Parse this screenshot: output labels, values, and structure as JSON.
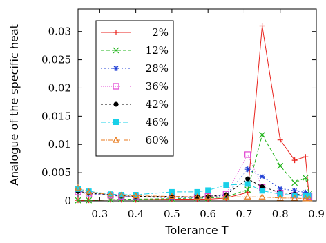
{
  "chart_data": {
    "type": "line",
    "xlabel": "Tolerance T",
    "ylabel": "Analogue of the specific heat",
    "xlim": [
      0.24,
      0.9
    ],
    "ylim": [
      0,
      0.034
    ],
    "xticks": [
      0.3,
      0.4,
      0.5,
      0.6,
      0.7,
      0.8,
      0.9
    ],
    "xtick_labels": [
      "0.3",
      "0.4",
      "0.5",
      "0.6",
      "0.7",
      "0.8",
      "0.9"
    ],
    "yticks": [
      0,
      0.005,
      0.01,
      0.015,
      0.02,
      0.025,
      0.03
    ],
    "ytick_labels": [
      "0",
      "0.005",
      "0.01",
      "0.015",
      "0.02",
      "0.025",
      "0.03"
    ],
    "legend_position": "top-left",
    "series": [
      {
        "name": "2%",
        "color": "#e8221c",
        "marker": "plus",
        "dash": "",
        "x": [
          0.24,
          0.27,
          0.33,
          0.36,
          0.4,
          0.5,
          0.57,
          0.6,
          0.65,
          0.71,
          0.75,
          0.8,
          0.84,
          0.87,
          0.88
        ],
        "y": [
          0.0001,
          0.0001,
          0.0002,
          0.0002,
          0.0002,
          0.0003,
          0.0003,
          0.0003,
          0.0005,
          0.0015,
          0.031,
          0.0108,
          0.0072,
          0.0078,
          0.0008
        ]
      },
      {
        "name": "12%",
        "color": "#22b41c",
        "marker": "x",
        "dash": "5,3",
        "x": [
          0.24,
          0.27,
          0.33,
          0.36,
          0.4,
          0.5,
          0.57,
          0.6,
          0.65,
          0.71,
          0.75,
          0.8,
          0.84,
          0.87,
          0.88
        ],
        "y": [
          0.0001,
          0.0001,
          0.0002,
          0.0003,
          0.0003,
          0.0004,
          0.0005,
          0.0005,
          0.0007,
          0.002,
          0.0117,
          0.0062,
          0.0032,
          0.0041,
          0.0012
        ]
      },
      {
        "name": "28%",
        "color": "#1c3cd4",
        "marker": "star",
        "dash": "2,3",
        "x": [
          0.24,
          0.27,
          0.33,
          0.36,
          0.4,
          0.5,
          0.57,
          0.6,
          0.65,
          0.71,
          0.75,
          0.8,
          0.84,
          0.87,
          0.88
        ],
        "y": [
          0.0018,
          0.0013,
          0.001,
          0.0008,
          0.0007,
          0.0006,
          0.0006,
          0.0006,
          0.001,
          0.0056,
          0.0043,
          0.0022,
          0.0018,
          0.0015,
          0.0012
        ]
      },
      {
        "name": "36%",
        "color": "#e040d0",
        "marker": "square-open",
        "dash": "1,2",
        "x": [
          0.24,
          0.27,
          0.33,
          0.36,
          0.4,
          0.5,
          0.57,
          0.6,
          0.65,
          0.71,
          0.75,
          0.8,
          0.84,
          0.87,
          0.88
        ],
        "y": [
          0.0016,
          0.0012,
          0.001,
          0.0008,
          0.0007,
          0.0007,
          0.0007,
          0.0008,
          0.0012,
          0.0082,
          0.0024,
          0.0014,
          0.001,
          0.0009,
          0.0008
        ]
      },
      {
        "name": "42%",
        "color": "#000000",
        "marker": "circle-filled",
        "dash": "3,3",
        "x": [
          0.24,
          0.27,
          0.33,
          0.36,
          0.4,
          0.5,
          0.57,
          0.6,
          0.65,
          0.71,
          0.75,
          0.8,
          0.84,
          0.87,
          0.88
        ],
        "y": [
          0.0017,
          0.0014,
          0.0011,
          0.0009,
          0.0008,
          0.0008,
          0.0007,
          0.0008,
          0.0011,
          0.0039,
          0.0025,
          0.0015,
          0.0012,
          0.001,
          0.0009
        ]
      },
      {
        "name": "46%",
        "color": "#19d0e8",
        "marker": "square-filled",
        "dash": "8,3,2,3",
        "x": [
          0.24,
          0.27,
          0.33,
          0.36,
          0.4,
          0.5,
          0.57,
          0.6,
          0.65,
          0.71,
          0.75,
          0.8,
          0.84,
          0.87,
          0.88
        ],
        "y": [
          0.0021,
          0.0017,
          0.0012,
          0.0011,
          0.0011,
          0.0016,
          0.0016,
          0.0019,
          0.0028,
          0.003,
          0.0018,
          0.0012,
          0.001,
          0.0009,
          0.0009
        ]
      },
      {
        "name": "60%",
        "color": "#e87a1c",
        "marker": "triangle-open",
        "dash": "6,2,1,2",
        "x": [
          0.24,
          0.27,
          0.33,
          0.36,
          0.4,
          0.5,
          0.57,
          0.6,
          0.65,
          0.71,
          0.75,
          0.8,
          0.84,
          0.87,
          0.88
        ],
        "y": [
          0.0023,
          0.0016,
          0.0011,
          0.001,
          0.0009,
          0.0008,
          0.0007,
          0.0007,
          0.0007,
          0.0007,
          0.0007,
          0.0005,
          0.0005,
          0.0004,
          0.0004
        ]
      }
    ]
  }
}
